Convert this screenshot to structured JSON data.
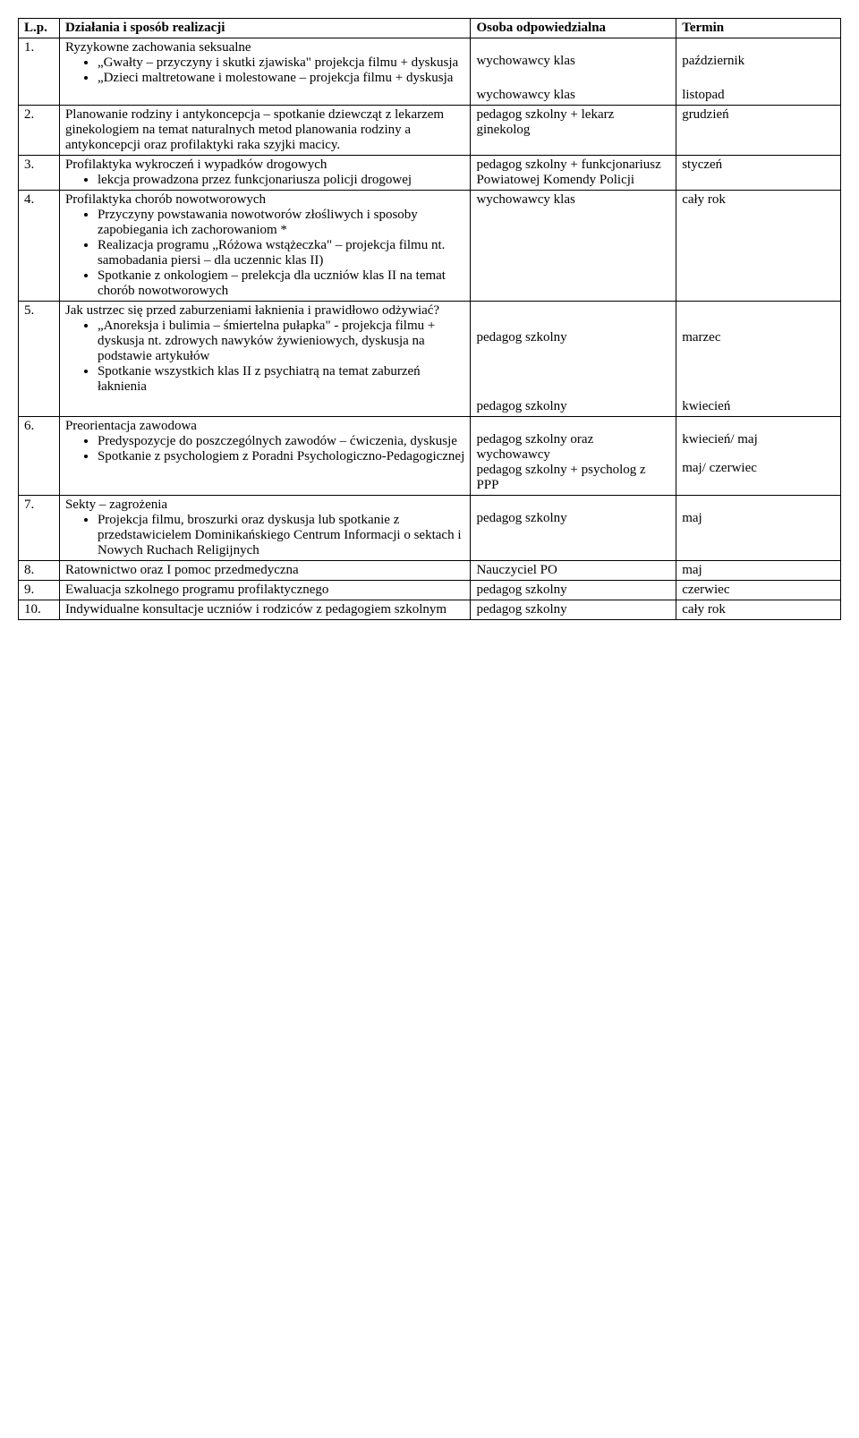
{
  "header": {
    "lp": "L.p.",
    "dzialania": "Działania i sposób realizacji",
    "osoba": "Osoba odpowiedzialna",
    "termin": "Termin"
  },
  "rows": {
    "r1": {
      "num": "1.",
      "title": "Ryzykowne zachowania seksualne",
      "b1": "„Gwałty – przyczyny i skutki zjawiska\" projekcja filmu + dyskusja",
      "b2": "„Dzieci maltretowane i molestowane – projekcja filmu + dyskusja",
      "osoba1": "wychowawcy klas",
      "osoba2": "wychowawcy klas",
      "termin1": "październik",
      "termin2": "listopad"
    },
    "r2": {
      "num": "2.",
      "text": "Planowanie rodziny i antykoncepcja – spotkanie dziewcząt z lekarzem ginekologiem na temat naturalnych metod planowania rodziny a antykoncepcji oraz profilaktyki raka szyjki macicy.",
      "osoba": "pedagog szkolny + lekarz ginekolog",
      "termin": "grudzień"
    },
    "r3": {
      "num": "3.",
      "title": "Profilaktyka wykroczeń i wypadków drogowych",
      "b1": "lekcja prowadzona przez funkcjonariusza policji drogowej",
      "osoba": "pedagog szkolny + funkcjonariusz Powiatowej Komendy Policji",
      "termin": "styczeń"
    },
    "r4": {
      "num": "4.",
      "title": "Profilaktyka chorób nowotworowych",
      "b1": "Przyczyny powstawania nowotworów złośliwych i sposoby zapobiegania ich zachorowaniom *",
      "b2": "Realizacja programu „Różowa wstążeczka\" – projekcja filmu nt. samobadania piersi – dla uczennic klas II)",
      "b3": "Spotkanie z onkologiem – prelekcja dla uczniów klas II na temat chorób nowotworowych",
      "osoba": "wychowawcy klas",
      "termin": "cały rok"
    },
    "r5": {
      "num": "5.",
      "title": "Jak ustrzec się przed zaburzeniami łaknienia i prawidłowo odżywiać?",
      "b1": "„Anoreksja i bulimia – śmiertelna pułapka\" - projekcja filmu + dyskusja nt. zdrowych nawyków żywieniowych, dyskusja na podstawie artykułów",
      "b2": "Spotkanie wszystkich klas II z psychiatrą na temat zaburzeń łaknienia",
      "osoba1": "pedagog szkolny",
      "osoba2": "pedagog szkolny",
      "termin1": "marzec",
      "termin2": "kwiecień"
    },
    "r6": {
      "num": "6.",
      "title": "Preorientacja zawodowa",
      "b1": "Predyspozycje do poszczególnych zawodów – ćwiczenia, dyskusje",
      "b2": "Spotkanie z psychologiem z Poradni Psychologiczno-Pedagogicznej",
      "osoba1": "pedagog szkolny oraz wychowawcy",
      "osoba2": "pedagog szkolny + psycholog z PPP",
      "termin1": "kwiecień/ maj",
      "termin2": "maj/ czerwiec"
    },
    "r7": {
      "num": "7.",
      "title": "Sekty – zagrożenia",
      "b1": "Projekcja filmu, broszurki oraz dyskusja lub spotkanie z przedstawicielem Dominikańskiego Centrum Informacji o sektach i Nowych Ruchach Religijnych",
      "osoba": "pedagog szkolny",
      "termin": "maj"
    },
    "r8": {
      "num": "8.",
      "text": "Ratownictwo oraz I pomoc przedmedyczna",
      "osoba": "Nauczyciel PO",
      "termin": "maj"
    },
    "r9": {
      "num": "9.",
      "text": "Ewaluacja szkolnego programu profilaktycznego",
      "osoba": "pedagog szkolny",
      "termin": "czerwiec"
    },
    "r10": {
      "num": "10.",
      "text": "Indywidualne konsultacje uczniów i rodziców z pedagogiem szkolnym",
      "osoba": "pedagog szkolny",
      "termin": "cały rok"
    }
  }
}
